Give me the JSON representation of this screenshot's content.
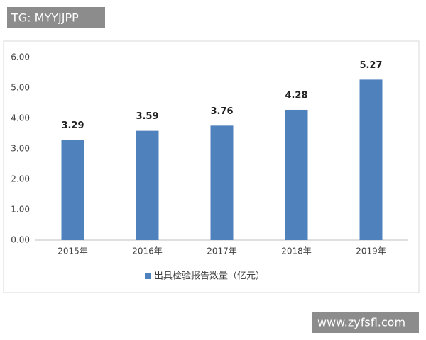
{
  "watermarks": [
    "TG: MYYJJPP",
    "www.zyfsfl.com"
  ],
  "chart_data": {
    "type": "bar",
    "categories": [
      "2015年",
      "2016年",
      "2017年",
      "2018年",
      "2019年"
    ],
    "series": [
      {
        "name": "出具检验报告数量（亿元）",
        "color": "#4f81bd",
        "values": [
          3.29,
          3.59,
          3.76,
          4.28,
          5.27
        ]
      }
    ],
    "ylim": [
      0,
      6
    ],
    "yticks": [
      {
        "value": 0,
        "label": "0.00"
      },
      {
        "value": 1,
        "label": "1.00"
      },
      {
        "value": 2,
        "label": "2.00"
      },
      {
        "value": 3,
        "label": "3.00"
      },
      {
        "value": 4,
        "label": "4.00"
      },
      {
        "value": 5,
        "label": "5.00"
      },
      {
        "value": 6,
        "label": "6.00"
      }
    ],
    "grid": false,
    "legend": "bottom"
  }
}
